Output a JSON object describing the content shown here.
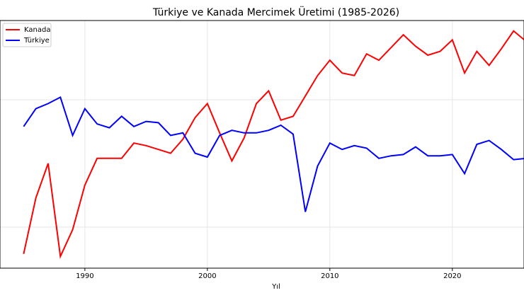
{
  "chart_data": {
    "type": "line",
    "title": "Türkiye ve Kanada Mercimek Üretimi (1985-2026)",
    "xlabel": "Yıl",
    "x": [
      1985,
      1986,
      1987,
      1988,
      1989,
      1990,
      1991,
      1992,
      1993,
      1994,
      1995,
      1996,
      1997,
      1998,
      1999,
      2000,
      2001,
      2002,
      2003,
      2004,
      2005,
      2006,
      2007,
      2008,
      2009,
      2010,
      2011,
      2012,
      2013,
      2014,
      2015,
      2016,
      2017,
      2018,
      2019,
      2020,
      2021,
      2022,
      2023,
      2024,
      2025,
      2026
    ],
    "series": [
      {
        "name": "Kanada",
        "color": "#ff0000",
        "values": [
          0.79,
          1.23,
          1.5,
          0.77,
          0.98,
          1.33,
          1.54,
          1.54,
          1.54,
          1.66,
          1.64,
          1.61,
          1.58,
          1.69,
          1.86,
          1.97,
          1.74,
          1.52,
          1.7,
          1.97,
          2.07,
          1.84,
          1.87,
          2.03,
          2.19,
          2.31,
          2.21,
          2.19,
          2.36,
          2.31,
          2.41,
          2.51,
          2.42,
          2.35,
          2.38,
          2.47,
          2.21,
          2.38,
          2.27,
          2.4,
          2.54,
          2.46
        ]
      },
      {
        "name": "Türkiye",
        "color": "#0000ff",
        "values": [
          1.79,
          1.93,
          1.97,
          2.02,
          1.72,
          1.93,
          1.81,
          1.78,
          1.87,
          1.79,
          1.83,
          1.82,
          1.72,
          1.74,
          1.58,
          1.55,
          1.72,
          1.76,
          1.74,
          1.74,
          1.76,
          1.8,
          1.73,
          1.12,
          1.48,
          1.66,
          1.61,
          1.64,
          1.62,
          1.54,
          1.56,
          1.57,
          1.63,
          1.56,
          1.56,
          1.57,
          1.42,
          1.65,
          1.68,
          1.61,
          1.53,
          1.54
        ]
      }
    ],
    "xlim": [
      1983.07,
      2025.85
    ],
    "xticks": [
      1990,
      2000,
      2010,
      2020
    ],
    "ylim": [
      0.678,
      2.622
    ],
    "yticks": [
      1,
      2
    ],
    "grid": true,
    "legend": "upper left"
  }
}
